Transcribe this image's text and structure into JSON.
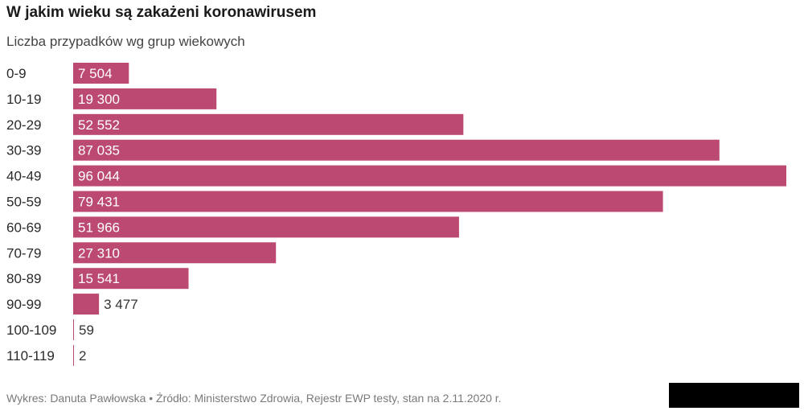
{
  "header": {
    "title": "W jakim wieku są zakażeni koronawirusem",
    "subtitle": "Liczba przypadków wg grup wiekowych"
  },
  "footer": {
    "text": "Wykres: Danuta Pawłowska • Źródło: Ministerstwo Zdrowia, Rejestr EWP testy, stan na 2.11.2020 r."
  },
  "colors": {
    "bar": "#bb4971",
    "label_inside": "#ffffff",
    "label_outside": "#333333"
  },
  "chart_data": {
    "type": "bar",
    "orientation": "horizontal",
    "title": "W jakim wieku są zakażeni koronawirusem",
    "subtitle": "Liczba przypadków wg grup wiekowych",
    "categories": [
      "0-9",
      "10-19",
      "20-29",
      "30-39",
      "40-49",
      "50-59",
      "60-69",
      "70-79",
      "80-89",
      "90-99",
      "100-109",
      "110-119"
    ],
    "values": [
      7504,
      19300,
      52552,
      87035,
      96044,
      79431,
      51966,
      27310,
      15541,
      3477,
      59,
      2
    ],
    "value_labels": [
      "7 504",
      "19 300",
      "52 552",
      "87 035",
      "96 044",
      "79 431",
      "51 966",
      "27 310",
      "15 541",
      "3 477",
      "59",
      "2"
    ],
    "xlim": [
      0,
      96044
    ],
    "grid": false,
    "legend": "none"
  }
}
